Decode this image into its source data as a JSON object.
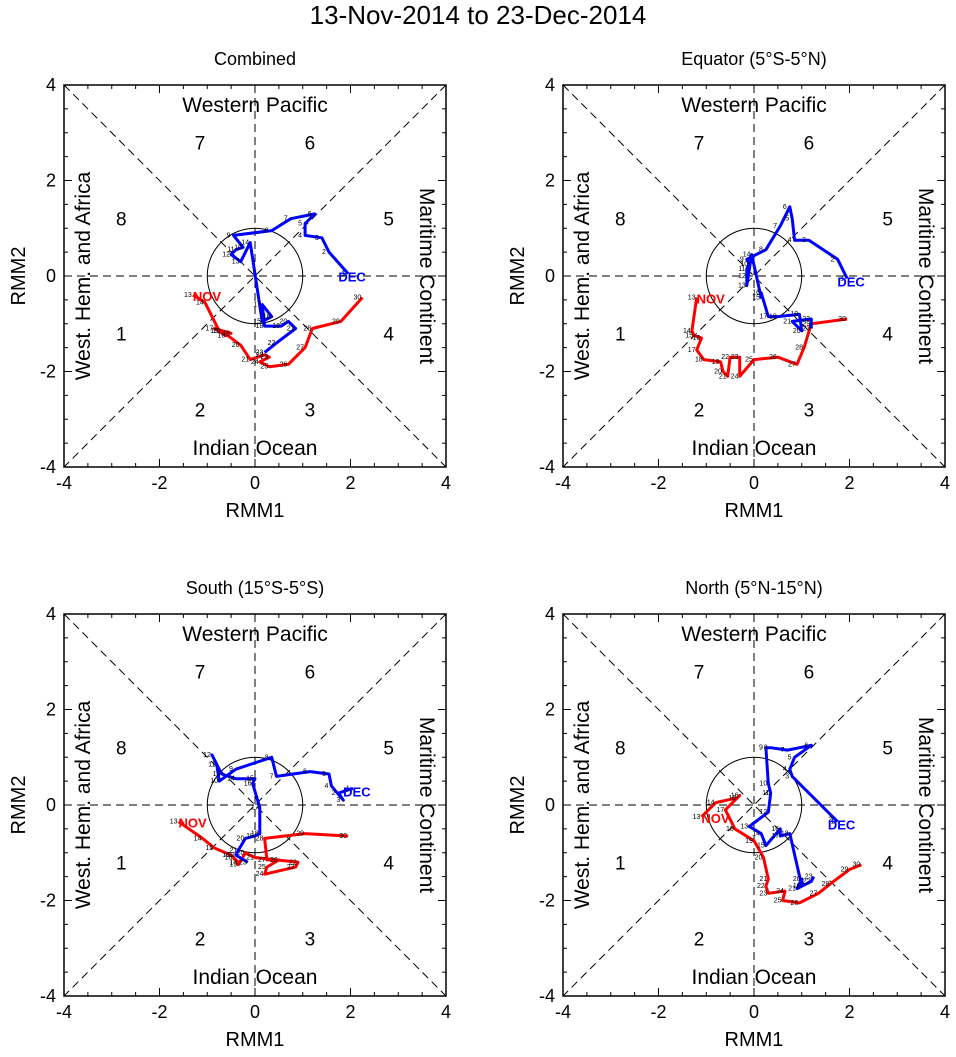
{
  "title": "13-Nov-2014 to 23-Dec-2014",
  "chart_data": [
    {
      "type": "line",
      "title": "Combined",
      "xlabel": "RMM1",
      "ylabel": "RMM2",
      "xlim": [
        -4,
        4
      ],
      "ylim": [
        -4,
        4
      ],
      "ticks": [
        "-4",
        "-2",
        "0",
        "2",
        "4"
      ],
      "regions": {
        "top": "Western Pacific",
        "bottom": "Indian Ocean",
        "left": "West. Hem. and Africa",
        "right": "Maritime Continent"
      },
      "phases": [
        "1",
        "2",
        "3",
        "4",
        "5",
        "6",
        "7",
        "8"
      ],
      "series": [
        {
          "name": "NOV",
          "color": "#ff0000",
          "labels": [
            "13",
            "14",
            "15",
            "16",
            "17",
            "18",
            "19",
            "20",
            "21",
            "22",
            "23",
            "24",
            "25",
            "26",
            "27",
            "28",
            "29",
            "30"
          ],
          "points": [
            [
              -1.3,
              -0.4
            ],
            [
              -1.05,
              -0.55
            ],
            [
              -0.75,
              -1.15
            ],
            [
              -0.6,
              -1.25
            ],
            [
              -0.85,
              -1.1
            ],
            [
              -0.5,
              -1.2
            ],
            [
              -0.7,
              -1.15
            ],
            [
              -0.3,
              -1.45
            ],
            [
              -0.1,
              -1.75
            ],
            [
              0.2,
              -1.65
            ],
            [
              0.3,
              -1.7
            ],
            [
              0.1,
              -1.8
            ],
            [
              0.3,
              -1.9
            ],
            [
              0.7,
              -1.85
            ],
            [
              1.05,
              -1.5
            ],
            [
              1.2,
              -1.1
            ],
            [
              1.8,
              -0.95
            ],
            [
              2.25,
              -0.45
            ]
          ]
        },
        {
          "name": "DEC",
          "color": "#0000ff",
          "labels": [
            "1",
            "2",
            "3",
            "4",
            "5",
            "6",
            "7",
            "8",
            "9",
            "10",
            "11",
            "12",
            "13",
            "14",
            "15",
            "16",
            "17",
            "18",
            "19",
            "20",
            "21",
            "22",
            "23"
          ],
          "points": [
            [
              1.95,
              0.05
            ],
            [
              1.55,
              0.5
            ],
            [
              1.4,
              0.8
            ],
            [
              1.05,
              0.85
            ],
            [
              1.05,
              1.1
            ],
            [
              1.25,
              1.3
            ],
            [
              0.75,
              1.2
            ],
            [
              0.35,
              0.95
            ],
            [
              -0.45,
              0.85
            ],
            [
              -0.25,
              0.6
            ],
            [
              -0.4,
              0.55
            ],
            [
              -0.5,
              0.45
            ],
            [
              -0.3,
              0.3
            ],
            [
              -0.1,
              0.7
            ],
            [
              0.15,
              -0.95
            ],
            [
              0.35,
              -0.85
            ],
            [
              0.15,
              -0.6
            ],
            [
              0.2,
              -1.05
            ],
            [
              0.55,
              -1.05
            ],
            [
              0.7,
              -0.95
            ],
            [
              0.85,
              -1.1
            ],
            [
              0.45,
              -1.4
            ],
            [
              0.2,
              -1.6
            ]
          ]
        }
      ]
    },
    {
      "type": "line",
      "title": "Equator (5°S-5°N)",
      "xlabel": "RMM1",
      "ylabel": "RMM2",
      "xlim": [
        -4,
        4
      ],
      "ylim": [
        -4,
        4
      ],
      "ticks": [
        "-4",
        "-2",
        "0",
        "2",
        "4"
      ],
      "regions": {
        "top": "Western Pacific",
        "bottom": "Indian Ocean",
        "left": "West. Hem. and Africa",
        "right": "Maritime Continent"
      },
      "phases": [
        "1",
        "2",
        "3",
        "4",
        "5",
        "6",
        "7",
        "8"
      ],
      "series": [
        {
          "name": "NOV",
          "color": "#ff0000",
          "labels": [
            "13",
            "14",
            "15",
            "16",
            "17",
            "18",
            "19",
            "20",
            "21",
            "22",
            "23",
            "24",
            "25",
            "26",
            "27",
            "28",
            "29",
            "30"
          ],
          "points": [
            [
              -1.2,
              -0.45
            ],
            [
              -1.3,
              -1.15
            ],
            [
              -1.25,
              -1.25
            ],
            [
              -1.1,
              -1.3
            ],
            [
              -1.2,
              -1.55
            ],
            [
              -1.05,
              -1.75
            ],
            [
              -0.7,
              -1.8
            ],
            [
              -0.65,
              -2.0
            ],
            [
              -0.55,
              -2.1
            ],
            [
              -0.5,
              -1.7
            ],
            [
              -0.3,
              -1.7
            ],
            [
              -0.3,
              -2.1
            ],
            [
              0.0,
              -1.75
            ],
            [
              0.5,
              -1.7
            ],
            [
              0.9,
              -1.85
            ],
            [
              1.05,
              -1.5
            ],
            [
              1.2,
              -1.0
            ],
            [
              1.95,
              -0.9
            ]
          ]
        },
        {
          "name": "DEC",
          "color": "#0000ff",
          "labels": [
            "1",
            "2",
            "3",
            "4",
            "5",
            "6",
            "7",
            "8",
            "9",
            "10",
            "11",
            "12",
            "13",
            "14",
            "15",
            "16",
            "17",
            "18",
            "19",
            "20",
            "21",
            "22",
            "23"
          ],
          "points": [
            [
              1.95,
              -0.05
            ],
            [
              1.75,
              0.35
            ],
            [
              1.15,
              0.75
            ],
            [
              0.85,
              0.75
            ],
            [
              0.8,
              1.2
            ],
            [
              0.75,
              1.45
            ],
            [
              0.55,
              1.05
            ],
            [
              0.25,
              0.55
            ],
            [
              -0.15,
              0.35
            ],
            [
              -0.1,
              0.25
            ],
            [
              -0.15,
              0.15
            ],
            [
              -0.15,
              0.0
            ],
            [
              -0.15,
              -0.2
            ],
            [
              -0.05,
              0.45
            ],
            [
              0.15,
              -0.45
            ],
            [
              0.15,
              -0.35
            ],
            [
              0.3,
              -0.85
            ],
            [
              0.5,
              -0.85
            ],
            [
              0.95,
              -0.8
            ],
            [
              1.0,
              -1.15
            ],
            [
              0.8,
              -0.95
            ],
            [
              1.2,
              -0.9
            ],
            [
              1.2,
              -1.1
            ]
          ]
        }
      ]
    },
    {
      "type": "line",
      "title": "South (15°S-5°S)",
      "xlabel": "RMM1",
      "ylabel": "RMM2",
      "xlim": [
        -4,
        4
      ],
      "ylim": [
        -4,
        4
      ],
      "ticks": [
        "-4",
        "-2",
        "0",
        "2",
        "4"
      ],
      "regions": {
        "top": "Western Pacific",
        "bottom": "Indian Ocean",
        "left": "West. Hem. and Africa",
        "right": "Maritime Continent"
      },
      "phases": [
        "1",
        "2",
        "3",
        "4",
        "5",
        "6",
        "7",
        "8"
      ],
      "series": [
        {
          "name": "NOV",
          "color": "#ff0000",
          "labels": [
            "13",
            "14",
            "15",
            "16",
            "17",
            "18",
            "19",
            "20",
            "21",
            "22",
            "23",
            "24",
            "25",
            "26",
            "27",
            "28",
            "29",
            "30"
          ],
          "points": [
            [
              -1.6,
              -0.35
            ],
            [
              -1.1,
              -0.7
            ],
            [
              -0.85,
              -0.9
            ],
            [
              -0.5,
              -1.05
            ],
            [
              -0.35,
              -1.2
            ],
            [
              -0.45,
              -1.1
            ],
            [
              -0.35,
              -1.25
            ],
            [
              -0.2,
              -1.0
            ],
            [
              0.0,
              -1.1
            ],
            [
              0.9,
              -1.2
            ],
            [
              0.85,
              -1.3
            ],
            [
              0.2,
              -1.45
            ],
            [
              0.25,
              -1.3
            ],
            [
              0.5,
              -1.15
            ],
            [
              0.25,
              -1.15
            ],
            [
              0.2,
              -0.7
            ],
            [
              1.05,
              -0.6
            ],
            [
              1.95,
              -0.65
            ]
          ]
        },
        {
          "name": "DEC",
          "color": "#0000ff",
          "labels": [
            "1",
            "2",
            "3",
            "4",
            "5",
            "6",
            "7",
            "8",
            "9",
            "10",
            "11",
            "12",
            "13",
            "14",
            "15",
            "16",
            "17",
            "18",
            "19",
            "20",
            "21",
            "22",
            "23"
          ],
          "points": [
            [
              2.05,
              0.35
            ],
            [
              1.75,
              0.25
            ],
            [
              1.85,
              0.1
            ],
            [
              1.6,
              0.4
            ],
            [
              1.55,
              0.65
            ],
            [
              1.15,
              0.7
            ],
            [
              0.45,
              0.6
            ],
            [
              0.35,
              1.0
            ],
            [
              -0.4,
              0.75
            ],
            [
              -0.75,
              0.5
            ],
            [
              -0.8,
              0.85
            ],
            [
              -0.9,
              1.05
            ],
            [
              -0.7,
              0.65
            ],
            [
              -0.4,
              0.55
            ],
            [
              0.0,
              0.55
            ],
            [
              -0.05,
              0.45
            ],
            [
              0.1,
              -0.05
            ],
            [
              0.1,
              -0.6
            ],
            [
              0.0,
              -0.65
            ],
            [
              -0.2,
              -0.7
            ],
            [
              -0.35,
              -0.95
            ],
            [
              -0.4,
              -1.05
            ],
            [
              -0.15,
              -1.2
            ]
          ]
        }
      ]
    },
    {
      "type": "line",
      "title": "North (5°N-15°N)",
      "xlabel": "RMM1",
      "ylabel": "RMM2",
      "xlim": [
        -4,
        4
      ],
      "ylim": [
        -4,
        4
      ],
      "ticks": [
        "-4",
        "-2",
        "0",
        "2",
        "4"
      ],
      "regions": {
        "top": "Western Pacific",
        "bottom": "Indian Ocean",
        "left": "West. Hem. and Africa",
        "right": "Maritime Continent"
      },
      "phases": [
        "1",
        "2",
        "3",
        "4",
        "5",
        "6",
        "7",
        "8"
      ],
      "series": [
        {
          "name": "NOV",
          "color": "#ff0000",
          "labels": [
            "13",
            "14",
            "15",
            "16",
            "17",
            "18",
            "19",
            "20",
            "21",
            "22",
            "23",
            "24",
            "25",
            "26",
            "27",
            "28",
            "29",
            "30"
          ],
          "points": [
            [
              -1.1,
              -0.25
            ],
            [
              -0.8,
              0.05
            ],
            [
              -0.35,
              0.15
            ],
            [
              -0.3,
              0.2
            ],
            [
              -0.6,
              -0.1
            ],
            [
              -0.4,
              -0.5
            ],
            [
              0.0,
              -0.75
            ],
            [
              0.2,
              -1.1
            ],
            [
              0.3,
              -1.55
            ],
            [
              0.25,
              -1.7
            ],
            [
              0.3,
              -1.85
            ],
            [
              0.65,
              -1.8
            ],
            [
              0.6,
              -2.0
            ],
            [
              0.95,
              -2.05
            ],
            [
              1.35,
              -1.85
            ],
            [
              1.6,
              -1.65
            ],
            [
              2.0,
              -1.35
            ],
            [
              2.25,
              -1.25
            ]
          ]
        },
        {
          "name": "DEC",
          "color": "#0000ff",
          "labels": [
            "1",
            "2",
            "3",
            "4",
            "5",
            "6",
            "7",
            "8",
            "9",
            "10",
            "11",
            "12",
            "13",
            "14",
            "15",
            "16",
            "17",
            "18",
            "19",
            "20",
            "21",
            "22",
            "23"
          ],
          "points": [
            [
              1.75,
              -0.35
            ],
            [
              1.7,
              -0.3
            ],
            [
              0.8,
              0.6
            ],
            [
              0.75,
              0.75
            ],
            [
              0.85,
              1.0
            ],
            [
              1.2,
              1.25
            ],
            [
              0.7,
              1.15
            ],
            [
              0.35,
              1.2
            ],
            [
              0.25,
              1.2
            ],
            [
              0.3,
              0.45
            ],
            [
              0.35,
              0.25
            ],
            [
              0.3,
              -0.15
            ],
            [
              -0.1,
              -0.45
            ],
            [
              0.15,
              -0.6
            ],
            [
              0.25,
              -0.85
            ],
            [
              0.55,
              -0.5
            ],
            [
              0.55,
              -0.65
            ],
            [
              0.75,
              -0.6
            ],
            [
              1.0,
              -1.7
            ],
            [
              1.0,
              -1.55
            ],
            [
              0.9,
              -1.75
            ],
            [
              1.2,
              -1.6
            ],
            [
              1.25,
              -1.5
            ]
          ]
        }
      ]
    }
  ]
}
